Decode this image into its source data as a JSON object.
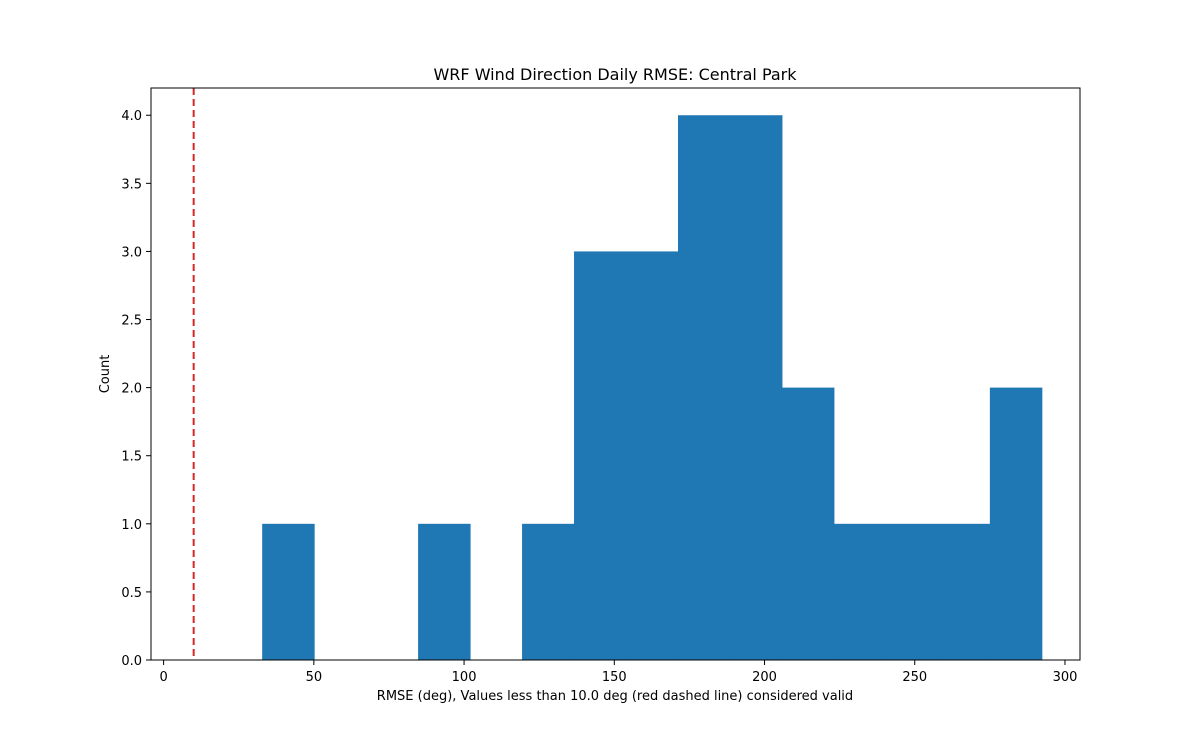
{
  "chart_data": {
    "type": "bar",
    "title": "WRF Wind Direction Daily RMSE: Central Park",
    "xlabel": "RMSE (deg), Values less than 10.0 deg (red dashed line) considered valid",
    "ylabel": "Count",
    "xlim": [
      -4.2,
      305
    ],
    "ylim": [
      0,
      4.2
    ],
    "x_ticks": [
      0,
      50,
      100,
      150,
      200,
      250,
      300
    ],
    "y_ticks": [
      0.0,
      0.5,
      1.0,
      1.5,
      2.0,
      2.5,
      3.0,
      3.5,
      4.0
    ],
    "x_tick_labels": [
      "0",
      "50",
      "100",
      "150",
      "200",
      "250",
      "300"
    ],
    "y_tick_labels": [
      "0.0",
      "0.5",
      "1.0",
      "1.5",
      "2.0",
      "2.5",
      "3.0",
      "3.5",
      "4.0"
    ],
    "bins": [
      {
        "start": 32.8,
        "end": 50.1,
        "count": 1
      },
      {
        "start": 50.1,
        "end": 67.4,
        "count": 0
      },
      {
        "start": 67.4,
        "end": 84.7,
        "count": 0
      },
      {
        "start": 84.7,
        "end": 102.0,
        "count": 1
      },
      {
        "start": 102.0,
        "end": 119.3,
        "count": 0
      },
      {
        "start": 119.3,
        "end": 136.6,
        "count": 1
      },
      {
        "start": 136.6,
        "end": 153.9,
        "count": 3
      },
      {
        "start": 153.9,
        "end": 171.2,
        "count": 3
      },
      {
        "start": 171.2,
        "end": 188.5,
        "count": 4
      },
      {
        "start": 188.5,
        "end": 205.8,
        "count": 4
      },
      {
        "start": 205.8,
        "end": 223.1,
        "count": 2
      },
      {
        "start": 223.1,
        "end": 240.4,
        "count": 1
      },
      {
        "start": 240.4,
        "end": 257.7,
        "count": 1
      },
      {
        "start": 257.7,
        "end": 275.0,
        "count": 1
      },
      {
        "start": 275.0,
        "end": 292.3,
        "count": 2
      }
    ],
    "threshold": 10.0,
    "bar_color": "#1f77b4",
    "threshold_color": "#d62728",
    "grid": false,
    "legend": false
  }
}
